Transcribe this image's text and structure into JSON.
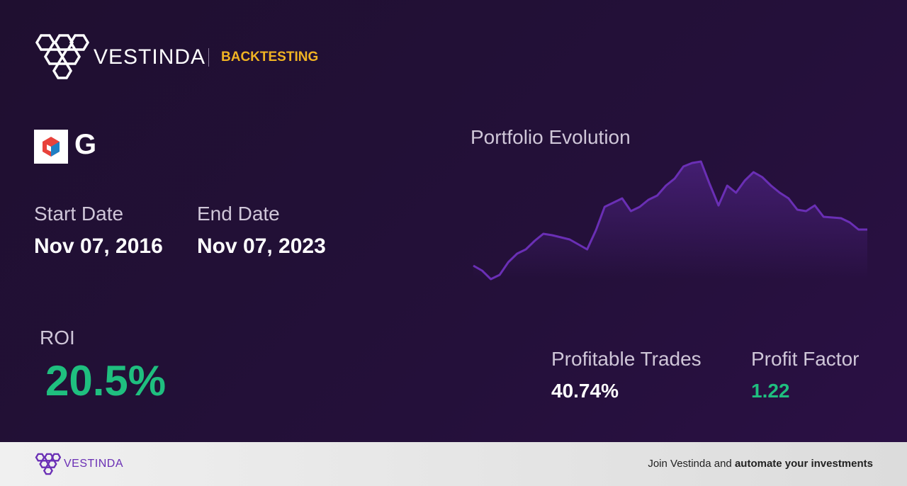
{
  "header": {
    "brand": "VESTINDA",
    "section": "BACKTESTING"
  },
  "asset": {
    "ticker": "G"
  },
  "dates": {
    "start_label": "Start Date",
    "start_value": "Nov 07, 2016",
    "end_label": "End Date",
    "end_value": "Nov 07, 2023"
  },
  "roi": {
    "label": "ROI",
    "value": "20.5%"
  },
  "chart_data": {
    "type": "line",
    "title": "Portfolio Evolution",
    "color": "#6a2fb5",
    "values": [
      25,
      18,
      6,
      12,
      30,
      42,
      48,
      60,
      70,
      68,
      65,
      62,
      55,
      48,
      75,
      108,
      114,
      120,
      102,
      108,
      118,
      124,
      138,
      148,
      165,
      170,
      172,
      140,
      110,
      138,
      128,
      145,
      157,
      150,
      138,
      128,
      120,
      104,
      102,
      110,
      94,
      93,
      92,
      86,
      76,
      76
    ]
  },
  "stats": {
    "trades_label": "Profitable Trades",
    "trades_value": "40.74%",
    "factor_label": "Profit Factor",
    "factor_value": "1.22"
  },
  "footer": {
    "brand": "VESTINDA",
    "cta_prefix": "Join Vestinda and",
    "cta_bold": "automate your investments"
  }
}
